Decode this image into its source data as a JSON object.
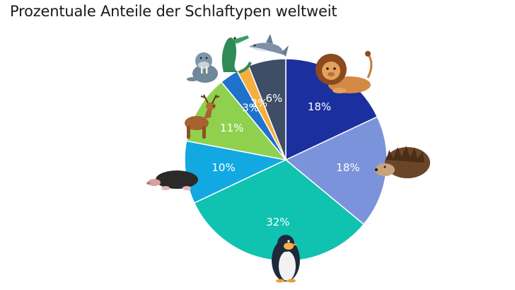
{
  "chart_data": {
    "type": "pie",
    "title": "Prozentuale Anteile der Schlaftypen weltweit",
    "slices": [
      {
        "value": 18,
        "label": "18%",
        "color": "#1C2F9E",
        "animal": "lion-icon"
      },
      {
        "value": 18,
        "label": "18%",
        "color": "#7B93DB",
        "animal": "hedgehog-icon"
      },
      {
        "value": 32,
        "label": "32%",
        "color": "#10C2B0",
        "animal": "penguin-icon"
      },
      {
        "value": 10,
        "label": "10%",
        "color": "#12A9E3",
        "animal": "mole-icon"
      },
      {
        "value": 11,
        "label": "11%",
        "color": "#8FD14F",
        "animal": "deer-icon"
      },
      {
        "value": 3,
        "label": "3%",
        "color": "#1E72CC",
        "animal": "walrus-icon"
      },
      {
        "value": 2,
        "label": "2%",
        "color": "#F6AE3C",
        "animal": "crocodile-icon"
      },
      {
        "value": 6,
        "label": "6%",
        "color": "#3F4D66",
        "animal": "shark-icon"
      }
    ]
  }
}
